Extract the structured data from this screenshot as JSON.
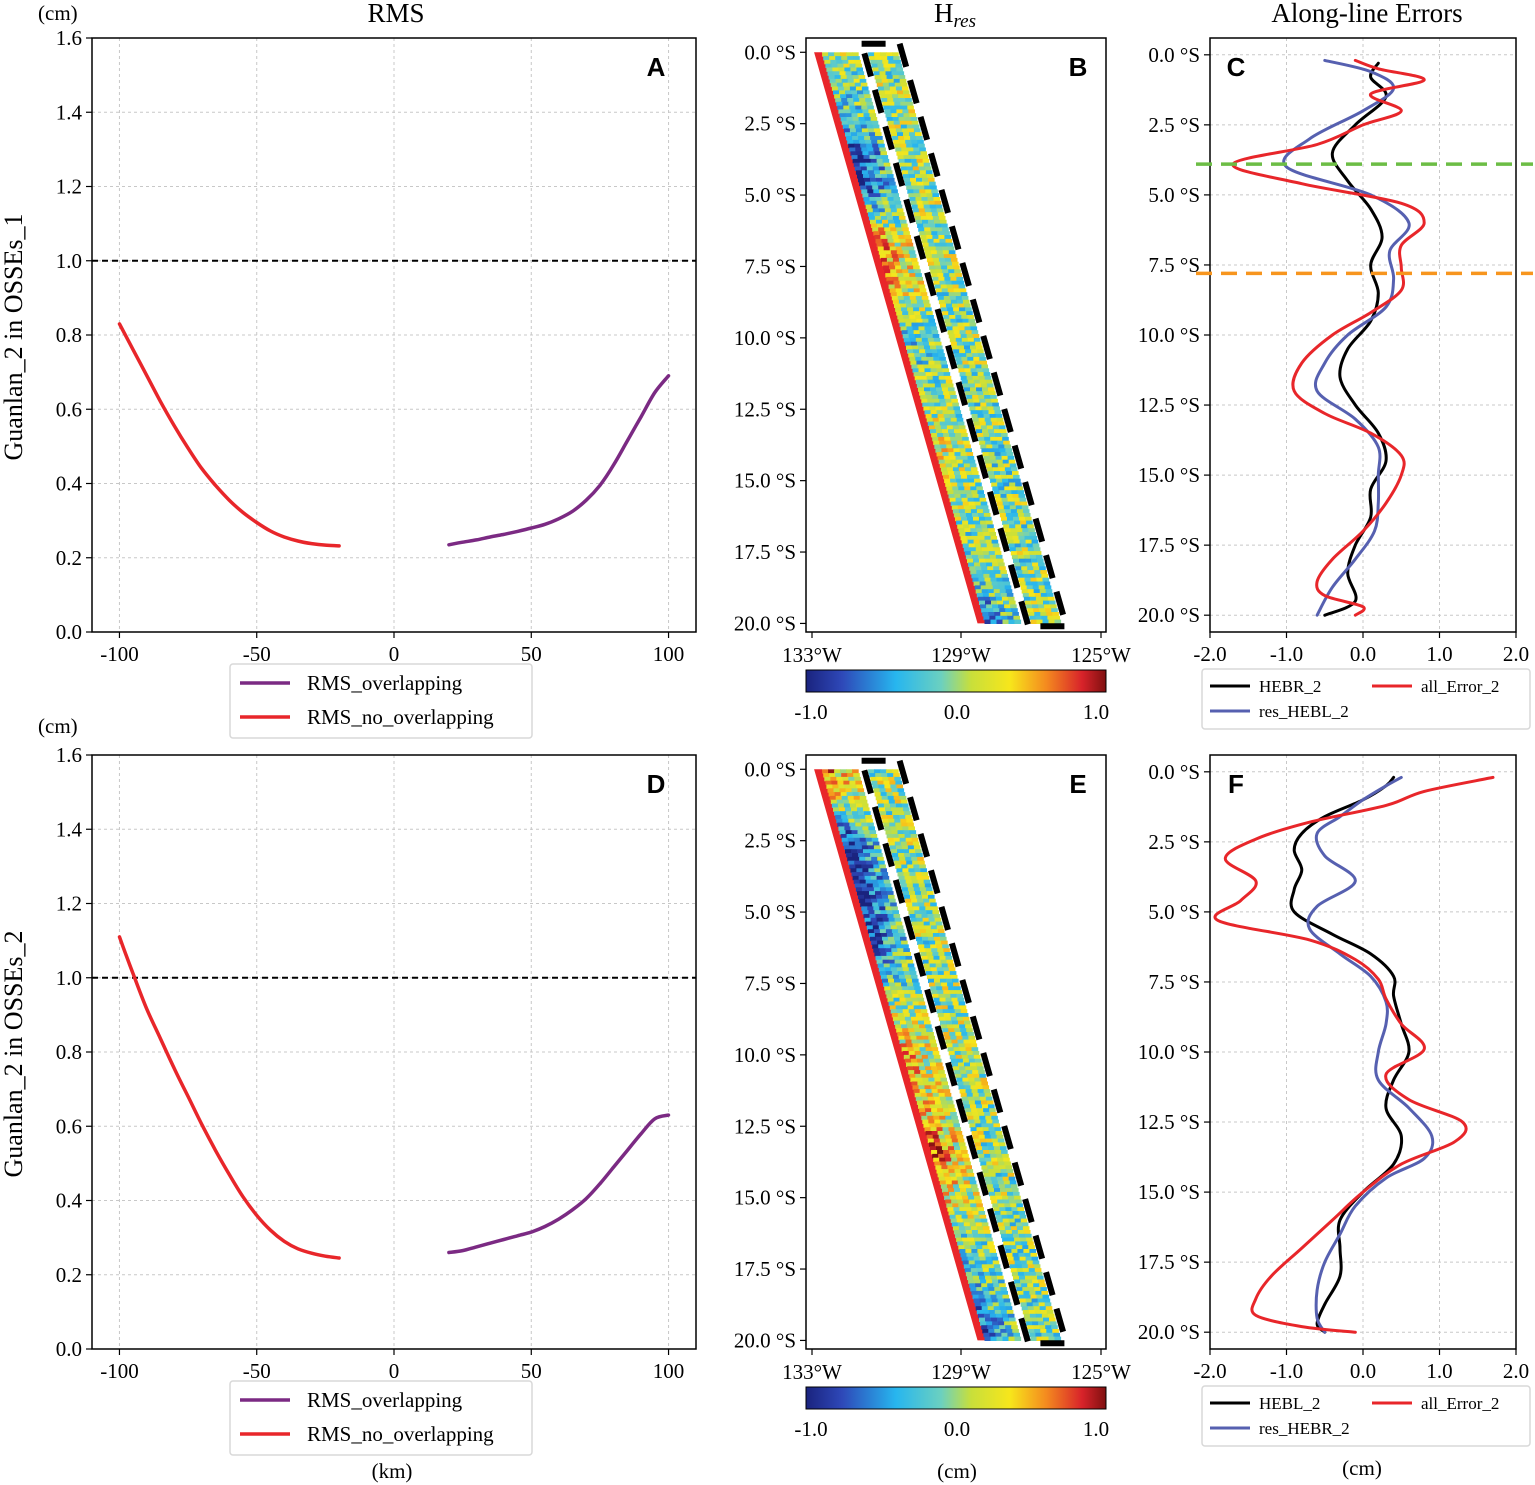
{
  "column_titles": {
    "rms": "RMS",
    "hres_main": "H",
    "hres_sub": "res",
    "errors": "Along-line Errors"
  },
  "row_labels": [
    "Guanlan_2 in OSSEs_1",
    "Guanlan_2 in OSSEs_2"
  ],
  "unit_labels": {
    "cm_top": "(cm)",
    "cm_mid": "(cm)",
    "km_bottom": "(km)",
    "cm_hres": "(cm)",
    "cm_err": "(cm)"
  },
  "colorbar": {
    "ticks": [
      "-1.0",
      "0.0",
      "1.0"
    ],
    "range": [
      -1.0,
      1.0
    ],
    "colormap": "jet"
  },
  "colors": {
    "purple": "#7b2a83",
    "red": "#e8262a",
    "blue": "#5660b0",
    "black": "#000000",
    "green_dash": "#6cbd45",
    "orange_dash": "#f7951e",
    "grid": "#c8c8c8"
  },
  "chart_data": [
    {
      "id": "A",
      "letter": "A",
      "type": "line",
      "xlabel": "",
      "ylabel": "Guanlan_2 in OSSEs_1",
      "xlim": [
        -110,
        110
      ],
      "ylim": [
        0,
        1.6
      ],
      "xticks": [
        "-100",
        "-50",
        "0",
        "50",
        "100"
      ],
      "yticks": [
        "0.0",
        "0.2",
        "0.4",
        "0.6",
        "0.8",
        "1.0",
        "1.2",
        "1.4",
        "1.6"
      ],
      "hline": 1.0,
      "legend": [
        "RMS_overlapping",
        "RMS_no_overlapping"
      ],
      "series": [
        {
          "name": "RMS_no_overlapping",
          "color": "red",
          "x": [
            -100,
            -95,
            -90,
            -85,
            -80,
            -75,
            -70,
            -65,
            -60,
            -55,
            -50,
            -45,
            -40,
            -35,
            -30,
            -25,
            -20
          ],
          "y": [
            0.83,
            0.76,
            0.69,
            0.62,
            0.555,
            0.495,
            0.44,
            0.395,
            0.355,
            0.322,
            0.295,
            0.272,
            0.256,
            0.245,
            0.238,
            0.234,
            0.232
          ]
        },
        {
          "name": "RMS_overlapping",
          "color": "purple",
          "x": [
            20,
            25,
            30,
            35,
            40,
            45,
            50,
            55,
            60,
            65,
            70,
            75,
            80,
            85,
            90,
            95,
            100
          ],
          "y": [
            0.235,
            0.242,
            0.248,
            0.256,
            0.263,
            0.271,
            0.28,
            0.29,
            0.305,
            0.325,
            0.355,
            0.395,
            0.45,
            0.515,
            0.58,
            0.645,
            0.69
          ]
        }
      ]
    },
    {
      "id": "B",
      "letter": "B",
      "type": "heatmap",
      "ylim": [
        -0.5,
        20.3
      ],
      "xlim": [
        -133.3,
        -125
      ],
      "yticks": [
        "0.0 °S",
        "2.5 °S",
        "5.0 °S",
        "7.5 °S",
        "10.0 °S",
        "12.5 °S",
        "15.0 °S",
        "17.5 °S",
        "20.0 °S"
      ],
      "xticks": [
        "133°W",
        "129°W",
        "125°W"
      ],
      "description": "Two parallel swaths of H_res (cm) along an inclined track; dashed box marks the right swath",
      "swath_profiles": [
        {
          "name": "left_swath",
          "lat": [
            0,
            2.5,
            3.5,
            5,
            6.5,
            8,
            10,
            12,
            14,
            16,
            18,
            20
          ],
          "mean": [
            0.0,
            -0.3,
            -0.9,
            -0.5,
            0.5,
            0.4,
            -0.2,
            0.0,
            0.2,
            0.0,
            -0.1,
            -0.5
          ]
        },
        {
          "name": "right_swath",
          "lat": [
            0,
            5,
            10,
            15,
            20
          ],
          "mean": [
            0.0,
            0.05,
            0.0,
            -0.05,
            0.0
          ]
        }
      ]
    },
    {
      "id": "C",
      "letter": "C",
      "type": "line",
      "xlim": [
        -2.0,
        2.0
      ],
      "ylim": [
        20.6,
        -0.6
      ],
      "xticks": [
        "-2.0",
        "-1.0",
        "0.0",
        "1.0",
        "2.0"
      ],
      "yticks": [
        "0.0 °S",
        "2.5 °S",
        "5.0 °S",
        "7.5 °S",
        "10.0 °S",
        "12.5 °S",
        "15.0 °S",
        "17.5 °S",
        "20.0 °S"
      ],
      "hlines": [
        {
          "y": 3.9,
          "color": "green_dash"
        },
        {
          "y": 7.8,
          "color": "orange_dash"
        }
      ],
      "legend": [
        "HEBR_2",
        "res_HEBL_2",
        "all_Error_2"
      ],
      "series": [
        {
          "name": "HEBR_2",
          "color": "black",
          "lat": [
            0.3,
            0.8,
            1.5,
            2.5,
            3.5,
            4.5,
            5.5,
            6.5,
            7.5,
            8.5,
            9.5,
            10.5,
            11.5,
            12.5,
            13.5,
            14.5,
            15.5,
            16.5,
            17.5,
            18.5,
            19.5,
            20.0
          ],
          "x": [
            0.2,
            0.1,
            0.3,
            -0.1,
            -0.4,
            -0.2,
            0.1,
            0.25,
            0.1,
            0.2,
            0.1,
            -0.2,
            -0.3,
            -0.1,
            0.2,
            0.3,
            0.1,
            0.1,
            -0.1,
            -0.2,
            -0.1,
            -0.5
          ]
        },
        {
          "name": "res_HEBL_2",
          "color": "blue",
          "lat": [
            0.2,
            0.6,
            1.2,
            2.0,
            3.0,
            4.0,
            5.0,
            6.0,
            7.0,
            8.0,
            9.0,
            10.0,
            11.0,
            12.0,
            13.0,
            14.0,
            15.0,
            16.0,
            17.0,
            18.0,
            19.0,
            20.0
          ],
          "x": [
            -0.5,
            0.1,
            0.4,
            0.0,
            -0.7,
            -1.0,
            0.1,
            0.6,
            0.35,
            0.4,
            0.3,
            -0.2,
            -0.5,
            -0.6,
            -0.1,
            0.2,
            0.2,
            0.2,
            0.15,
            -0.1,
            -0.4,
            -0.6
          ]
        },
        {
          "name": "all_Error_2",
          "color": "red",
          "lat": [
            0.2,
            0.5,
            0.9,
            1.4,
            2.0,
            2.5,
            3.2,
            3.9,
            4.6,
            5.3,
            6.0,
            6.8,
            7.6,
            8.4,
            9.2,
            10.0,
            11.0,
            12.0,
            12.8,
            13.5,
            14.3,
            15.0,
            16.0,
            17.0,
            18.0,
            18.8,
            19.3,
            19.7,
            20.0
          ],
          "x": [
            -0.1,
            0.2,
            0.8,
            0.1,
            0.5,
            0.0,
            -0.6,
            -1.7,
            -0.8,
            0.5,
            0.8,
            0.5,
            0.5,
            0.5,
            0.1,
            -0.4,
            -0.8,
            -0.9,
            -0.5,
            0.1,
            0.5,
            0.5,
            0.3,
            0.0,
            -0.4,
            -0.6,
            -0.5,
            0.0,
            -0.1
          ]
        }
      ]
    },
    {
      "id": "D",
      "letter": "D",
      "type": "line",
      "xlabel": "(km)",
      "ylabel": "Guanlan_2 in OSSEs_2",
      "xlim": [
        -110,
        110
      ],
      "ylim": [
        0,
        1.6
      ],
      "xticks": [
        "-100",
        "-50",
        "0",
        "50",
        "100"
      ],
      "yticks": [
        "0.0",
        "0.2",
        "0.4",
        "0.6",
        "0.8",
        "1.0",
        "1.2",
        "1.4",
        "1.6"
      ],
      "hline": 1.0,
      "legend": [
        "RMS_overlapping",
        "RMS_no_overlapping"
      ],
      "series": [
        {
          "name": "RMS_no_overlapping",
          "color": "red",
          "x": [
            -100,
            -95,
            -90,
            -85,
            -80,
            -75,
            -70,
            -65,
            -60,
            -55,
            -50,
            -45,
            -40,
            -35,
            -30,
            -25,
            -20
          ],
          "y": [
            1.11,
            1.01,
            0.915,
            0.835,
            0.755,
            0.68,
            0.605,
            0.535,
            0.47,
            0.41,
            0.36,
            0.32,
            0.29,
            0.27,
            0.258,
            0.25,
            0.245
          ]
        },
        {
          "name": "RMS_overlapping",
          "color": "purple",
          "x": [
            20,
            25,
            30,
            35,
            40,
            45,
            50,
            55,
            60,
            65,
            70,
            75,
            80,
            85,
            90,
            95,
            100
          ],
          "y": [
            0.26,
            0.265,
            0.275,
            0.285,
            0.295,
            0.305,
            0.315,
            0.33,
            0.35,
            0.375,
            0.405,
            0.445,
            0.49,
            0.535,
            0.58,
            0.62,
            0.63
          ]
        }
      ]
    },
    {
      "id": "E",
      "letter": "E",
      "type": "heatmap",
      "ylim": [
        -0.5,
        20.3
      ],
      "xlim": [
        -133.3,
        -125
      ],
      "yticks": [
        "0.0 °S",
        "2.5 °S",
        "5.0 °S",
        "7.5 °S",
        "10.0 °S",
        "12.5 °S",
        "15.0 °S",
        "17.5 °S",
        "20.0 °S"
      ],
      "xticks": [
        "133°W",
        "129°W",
        "125°W"
      ],
      "description": "Two parallel swaths of H_res (cm) along an inclined track; dashed box marks the right swath",
      "swath_profiles": [
        {
          "name": "left_swath",
          "lat": [
            0,
            1,
            2.5,
            4,
            6,
            8,
            10,
            12,
            13,
            14,
            16,
            18,
            20
          ],
          "mean": [
            0.6,
            0.3,
            -0.8,
            -0.9,
            -0.6,
            0.0,
            0.4,
            0.3,
            0.6,
            0.5,
            0.0,
            -0.3,
            -0.7
          ]
        },
        {
          "name": "right_swath",
          "lat": [
            0,
            5,
            10,
            15,
            20
          ],
          "mean": [
            0.05,
            0.0,
            0.05,
            0.0,
            -0.05
          ]
        }
      ]
    },
    {
      "id": "F",
      "letter": "F",
      "type": "line",
      "xlim": [
        -2.0,
        2.0
      ],
      "ylim": [
        20.6,
        -0.6
      ],
      "xticks": [
        "-2.0",
        "-1.0",
        "0.0",
        "1.0",
        "2.0"
      ],
      "yticks": [
        "0.0 °S",
        "2.5 °S",
        "5.0 °S",
        "7.5 °S",
        "10.0 °S",
        "12.5 °S",
        "15.0 °S",
        "17.5 °S",
        "20.0 °S"
      ],
      "xlabel": "(cm)",
      "legend": [
        "HEBL_2",
        "res_HEBR_2",
        "all_Error_2"
      ],
      "series": [
        {
          "name": "HEBL_2",
          "color": "black",
          "lat": [
            0.2,
            0.5,
            1.0,
            1.6,
            2.2,
            2.8,
            3.5,
            4.2,
            5.0,
            5.8,
            6.5,
            7.3,
            8.0,
            9.0,
            10.0,
            11.0,
            12.0,
            13.0,
            14.0,
            15.0,
            16.0,
            17.0,
            18.0,
            19.0,
            19.7,
            20.0
          ],
          "x": [
            0.4,
            0.3,
            0.0,
            -0.5,
            -0.8,
            -0.9,
            -0.8,
            -0.9,
            -0.9,
            -0.4,
            0.1,
            0.4,
            0.4,
            0.5,
            0.6,
            0.4,
            0.3,
            0.5,
            0.4,
            0.0,
            -0.3,
            -0.3,
            -0.3,
            -0.5,
            -0.6,
            -0.5
          ]
        },
        {
          "name": "res_HEBR_2",
          "color": "blue",
          "lat": [
            0.2,
            0.5,
            1.0,
            1.6,
            2.2,
            3.0,
            3.9,
            4.8,
            5.6,
            6.5,
            7.3,
            8.2,
            9.0,
            10.0,
            11.0,
            12.0,
            13.0,
            13.8,
            14.5,
            15.5,
            16.5,
            17.5,
            18.5,
            19.5,
            20.0
          ],
          "x": [
            0.5,
            0.3,
            0.0,
            -0.3,
            -0.6,
            -0.5,
            -0.1,
            -0.6,
            -0.7,
            -0.3,
            0.1,
            0.3,
            0.3,
            0.2,
            0.2,
            0.6,
            0.9,
            0.8,
            0.3,
            -0.1,
            -0.3,
            -0.5,
            -0.6,
            -0.6,
            -0.5
          ]
        },
        {
          "name": "all_Error_2",
          "color": "red",
          "lat": [
            0.2,
            0.7,
            1.2,
            1.8,
            2.4,
            3.1,
            3.9,
            4.6,
            5.3,
            6.0,
            6.7,
            7.4,
            8.1,
            9.0,
            9.9,
            10.8,
            11.7,
            12.5,
            13.2,
            14.0,
            15.0,
            16.0,
            17.0,
            18.0,
            18.8,
            19.4,
            19.8,
            20.0
          ],
          "x": [
            1.7,
            0.8,
            0.3,
            -0.7,
            -1.4,
            -1.8,
            -1.4,
            -1.6,
            -1.9,
            -0.7,
            -0.1,
            0.2,
            0.3,
            0.5,
            0.8,
            0.3,
            0.6,
            1.3,
            1.2,
            0.5,
            0.0,
            -0.4,
            -0.8,
            -1.2,
            -1.4,
            -1.4,
            -0.8,
            -0.1
          ]
        }
      ]
    }
  ]
}
